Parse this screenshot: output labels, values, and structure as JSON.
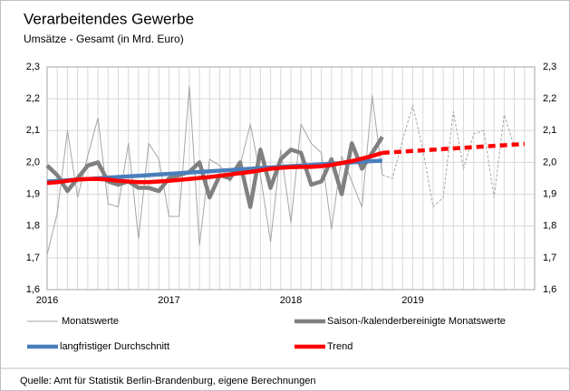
{
  "chart_data": {
    "type": "line",
    "title": "Verarbeitendes Gewerbe",
    "subtitle": "Umsätze - Gesamt (in Mrd. Euro)",
    "source": "Quelle: Amt für Statistik Berlin-Brandenburg, eigene Berechnungen",
    "x": [
      2016,
      2016.083,
      2016.167,
      2016.25,
      2016.333,
      2016.417,
      2016.5,
      2016.583,
      2016.667,
      2016.75,
      2016.833,
      2016.917,
      2017,
      2017.083,
      2017.167,
      2017.25,
      2017.333,
      2017.417,
      2017.5,
      2017.583,
      2017.667,
      2017.75,
      2017.833,
      2017.917,
      2018,
      2018.083,
      2018.167,
      2018.25,
      2018.333,
      2018.417,
      2018.5,
      2018.583,
      2018.667,
      2018.75,
      2018.833,
      2018.917,
      2019,
      2019.083,
      2019.167,
      2019.25,
      2019.333,
      2019.417,
      2019.5,
      2019.583,
      2019.667,
      2019.75,
      2019.833,
      2019.917
    ],
    "xlim": [
      2016,
      2020
    ],
    "xticks": [
      2016,
      2017,
      2018,
      2019
    ],
    "xminor_per_tick": 12,
    "ylim": [
      1.6,
      2.3
    ],
    "yticks": [
      {
        "value": 1.6,
        "label": "1,6"
      },
      {
        "value": 1.7,
        "label": "1,7"
      },
      {
        "value": 1.8,
        "label": "1,8"
      },
      {
        "value": 1.9,
        "label": "1,9"
      },
      {
        "value": 2.0,
        "label": "2,0"
      },
      {
        "value": 2.1,
        "label": "2,1"
      },
      {
        "value": 2.2,
        "label": "2,2"
      },
      {
        "value": 2.3,
        "label": "2,3"
      }
    ],
    "y2lim": [
      1.6,
      2.3
    ],
    "y2ticks": [
      {
        "value": 1.6,
        "label": "1,6"
      },
      {
        "value": 1.7,
        "label": "1,7"
      },
      {
        "value": 1.8,
        "label": "1,8"
      },
      {
        "value": 1.9,
        "label": "1,9"
      },
      {
        "value": 2.0,
        "label": "2,0"
      },
      {
        "value": 2.1,
        "label": "2,1"
      },
      {
        "value": 2.2,
        "label": "2,2"
      },
      {
        "value": 2.3,
        "label": "2,3"
      }
    ],
    "grid": true,
    "series": [
      {
        "name": "Monatswerte",
        "color": "#a6a6a6",
        "width": 1,
        "forecast_from": 2018.75,
        "values": [
          1.71,
          1.84,
          2.1,
          1.89,
          2.02,
          2.14,
          1.87,
          1.86,
          2.06,
          1.76,
          2.06,
          2.01,
          1.83,
          1.83,
          2.24,
          1.74,
          2.01,
          1.99,
          1.94,
          1.99,
          2.12,
          1.96,
          1.75,
          2.04,
          1.81,
          2.12,
          2.06,
          2.03,
          1.79,
          2.02,
          1.94,
          1.86,
          2.21,
          1.96,
          1.95,
          2.07,
          2.18,
          2.04,
          1.86,
          1.89,
          2.16,
          1.98,
          2.09,
          2.1,
          1.89,
          2.15,
          2.05,
          null
        ]
      },
      {
        "name": "Saison-/kalenderbereinigte Monatswerte",
        "color": "#808080",
        "width": 4.5,
        "values": [
          1.99,
          1.96,
          1.91,
          1.95,
          1.99,
          2.0,
          1.94,
          1.93,
          1.94,
          1.92,
          1.92,
          1.91,
          1.95,
          1.96,
          1.97,
          2.0,
          1.89,
          1.96,
          1.95,
          2.0,
          1.86,
          2.04,
          1.92,
          2.01,
          2.04,
          2.03,
          1.93,
          1.94,
          2.01,
          1.9,
          2.06,
          1.98,
          2.03,
          2.08,
          null,
          null,
          null,
          null,
          null,
          null,
          null,
          null,
          null,
          null,
          null,
          null,
          null,
          null
        ]
      },
      {
        "name": "langfristiger Durchschnitt",
        "color": "#4a7ebb",
        "width": 4.5,
        "values": [
          1.94,
          1.942,
          1.944,
          1.946,
          1.948,
          1.95,
          1.952,
          1.954,
          1.956,
          1.958,
          1.96,
          1.962,
          1.964,
          1.966,
          1.968,
          1.97,
          1.972,
          1.974,
          1.976,
          1.978,
          1.98,
          1.982,
          1.984,
          1.986,
          1.988,
          1.99,
          1.992,
          1.994,
          1.996,
          1.998,
          2.0,
          2.002,
          2.004,
          2.005,
          null,
          null,
          null,
          null,
          null,
          null,
          null,
          null,
          null,
          null,
          null,
          null,
          null,
          null
        ]
      },
      {
        "name": "Trend",
        "color": "#ff0000",
        "width": 4.5,
        "forecast_from": 2018.75,
        "values": [
          1.935,
          1.938,
          1.942,
          1.946,
          1.948,
          1.948,
          1.946,
          1.942,
          1.94,
          1.938,
          1.938,
          1.94,
          1.942,
          1.945,
          1.948,
          1.951,
          1.954,
          1.958,
          1.962,
          1.966,
          1.97,
          1.975,
          1.98,
          1.983,
          1.985,
          1.986,
          1.986,
          1.988,
          1.992,
          1.998,
          2.004,
          2.012,
          2.02,
          2.03,
          2.032,
          2.034,
          2.036,
          2.038,
          2.04,
          2.042,
          2.044,
          2.046,
          2.048,
          2.05,
          2.052,
          2.054,
          2.056,
          2.058
        ]
      }
    ]
  }
}
